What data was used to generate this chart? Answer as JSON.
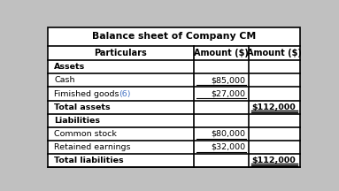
{
  "title": "Balance sheet of Company CM",
  "headers": [
    "Particulars",
    "Amount ($)",
    "Amount ($)"
  ],
  "rows": [
    {
      "label": "Assets",
      "col1": "",
      "col2": "",
      "bold": true,
      "has_note": false
    },
    {
      "label": "Cash",
      "col1": "$85,000",
      "col2": "",
      "bold": false,
      "has_note": false
    },
    {
      "label": "Fimished goods",
      "col1": "$27,000",
      "col2": "",
      "bold": false,
      "has_note": true
    },
    {
      "label": "Total assets",
      "col1": "",
      "col2": "$112,000",
      "bold": true,
      "has_note": false
    },
    {
      "label": "Liabilities",
      "col1": "",
      "col2": "",
      "bold": true,
      "has_note": false
    },
    {
      "label": "Common stock",
      "col1": "$80,000",
      "col2": "",
      "bold": false,
      "has_note": false
    },
    {
      "label": "Retained earnings",
      "col1": "$32,000",
      "col2": "",
      "bold": false,
      "has_note": false
    },
    {
      "label": "Total liabilities",
      "col1": "",
      "col2": "$112,000",
      "bold": true,
      "has_note": false
    }
  ],
  "note_color": "#4472C4",
  "border_color": "#000000",
  "bg_color": "#c0c0c0",
  "table_bg": "#ffffff",
  "title_fontsize": 7.8,
  "header_fontsize": 7.0,
  "row_fontsize": 6.8,
  "col_split1": 0.575,
  "col_split2": 0.785
}
